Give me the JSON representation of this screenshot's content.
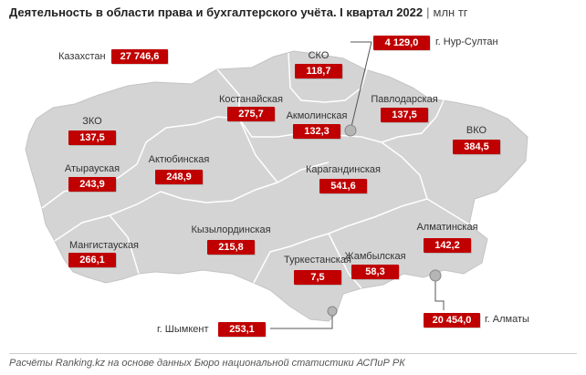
{
  "header": {
    "title": "Деятельность в области права и бухгалтерского учёта. I квартал 2022",
    "separator": "|",
    "unit": "млн тг"
  },
  "country": {
    "name": "Казахстан",
    "value": "27 746,6"
  },
  "regions": [
    {
      "id": "zko",
      "name": "ЗКО",
      "value": "137,5"
    },
    {
      "id": "atyrau",
      "name": "Атырауская",
      "value": "243,9"
    },
    {
      "id": "aktobe",
      "name": "Актюбинская",
      "value": "248,9"
    },
    {
      "id": "kostanay",
      "name": "Костанайская",
      "value": "275,7"
    },
    {
      "id": "sko",
      "name": "СКО",
      "value": "118,7"
    },
    {
      "id": "akmola",
      "name": "Акмолинская",
      "value": "132,3"
    },
    {
      "id": "pavlodar",
      "name": "Павлодарская",
      "value": "137,5"
    },
    {
      "id": "vko",
      "name": "ВКО",
      "value": "384,5"
    },
    {
      "id": "karaganda",
      "name": "Карагандинская",
      "value": "541,6"
    },
    {
      "id": "mangystau",
      "name": "Мангистауская",
      "value": "266,1"
    },
    {
      "id": "kyzylorda",
      "name": "Кызылординская",
      "value": "215,8"
    },
    {
      "id": "turkestan",
      "name": "Туркестанская",
      "value": "7,5"
    },
    {
      "id": "zhambyl",
      "name": "Жамбылская",
      "value": "58,3"
    },
    {
      "id": "almaty_reg",
      "name": "Алматинская",
      "value": "142,2"
    }
  ],
  "cities": [
    {
      "id": "nur_sultan",
      "name": "г. Нур-Султан",
      "value": "4 129,0"
    },
    {
      "id": "almaty",
      "name": "г. Алматы",
      "value": "20 454,0"
    },
    {
      "id": "shymkent",
      "name": "г. Шымкент",
      "value": "253,1"
    }
  ],
  "footer": {
    "source": "Расчёты Ranking.kz на основе данных Бюро национальной статистики АСПиР РК"
  },
  "colors": {
    "badge": "#c00000",
    "land": "#d4d4d4",
    "border": "#ffffff",
    "marker": "#b5b5b5"
  }
}
